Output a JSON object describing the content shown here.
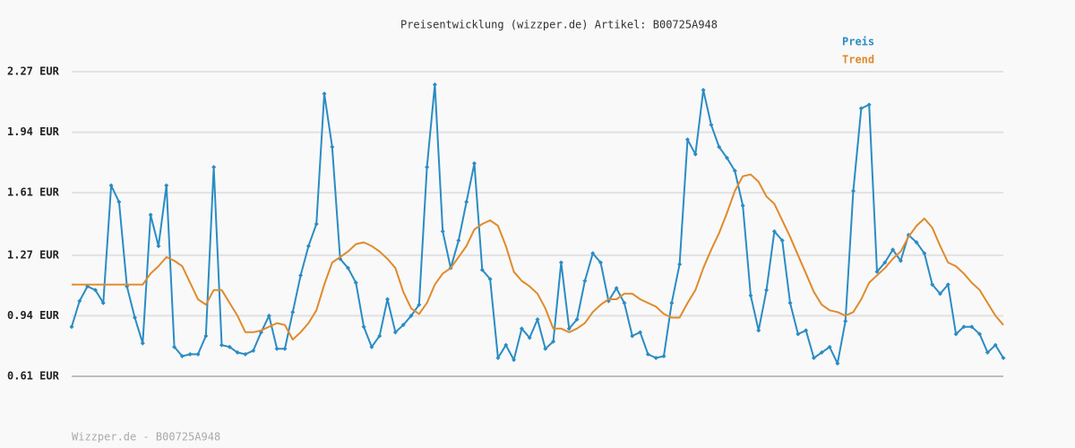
{
  "chart_data": {
    "type": "line",
    "title": "Preisentwicklung (wizzper.de) Artikel: B00725A948",
    "footer": "Wizzper.de - B00725A948",
    "ylim": [
      0.61,
      2.27
    ],
    "yticks": [
      {
        "value": 0.61,
        "label": "0.61 EUR"
      },
      {
        "value": 0.94,
        "label": "0.94 EUR"
      },
      {
        "value": 1.27,
        "label": "1.27 EUR"
      },
      {
        "value": 1.61,
        "label": "1.61 EUR"
      },
      {
        "value": 1.94,
        "label": "1.94 EUR"
      },
      {
        "value": 2.27,
        "label": "2.27 EUR"
      }
    ],
    "grid": true,
    "series": [
      {
        "name": "Preis",
        "color": "#2a8cc4",
        "markers": true,
        "values": [
          0.88,
          1.02,
          1.1,
          1.08,
          1.01,
          1.65,
          1.56,
          1.1,
          0.93,
          0.79,
          1.49,
          1.32,
          1.65,
          0.77,
          0.72,
          0.73,
          0.73,
          0.83,
          1.75,
          0.78,
          0.77,
          0.74,
          0.73,
          0.75,
          0.85,
          0.94,
          0.76,
          0.76,
          0.96,
          1.16,
          1.32,
          1.44,
          2.15,
          1.86,
          1.25,
          1.2,
          1.12,
          0.88,
          0.77,
          0.83,
          1.03,
          0.85,
          0.89,
          0.94,
          1.0,
          1.75,
          2.2,
          1.4,
          1.2,
          1.35,
          1.56,
          1.77,
          1.19,
          1.14,
          0.71,
          0.78,
          0.7,
          0.87,
          0.82,
          0.92,
          0.76,
          0.8,
          1.23,
          0.87,
          0.92,
          1.13,
          1.28,
          1.23,
          1.02,
          1.09,
          1.01,
          0.83,
          0.85,
          0.73,
          0.71,
          0.72,
          1.01,
          1.22,
          1.9,
          1.82,
          2.17,
          1.98,
          1.86,
          1.8,
          1.73,
          1.54,
          1.05,
          0.86,
          1.08,
          1.4,
          1.35,
          1.01,
          0.84,
          0.86,
          0.71,
          0.74,
          0.77,
          0.68,
          0.91,
          1.62,
          2.07,
          2.09,
          1.18,
          1.23,
          1.3,
          1.24,
          1.38,
          1.34,
          1.28,
          1.11,
          1.06,
          1.11,
          0.84,
          0.88,
          0.88,
          0.84,
          0.74,
          0.78,
          0.71
        ]
      },
      {
        "name": "Trend",
        "color": "#e08a2c",
        "markers": false,
        "values": [
          1.11,
          1.11,
          1.11,
          1.11,
          1.11,
          1.11,
          1.11,
          1.11,
          1.11,
          1.11,
          1.17,
          1.21,
          1.26,
          1.24,
          1.21,
          1.12,
          1.03,
          1.0,
          1.08,
          1.08,
          1.01,
          0.94,
          0.85,
          0.85,
          0.86,
          0.88,
          0.9,
          0.89,
          0.81,
          0.85,
          0.9,
          0.97,
          1.11,
          1.23,
          1.26,
          1.29,
          1.33,
          1.34,
          1.32,
          1.29,
          1.25,
          1.2,
          1.07,
          0.98,
          0.95,
          1.01,
          1.11,
          1.17,
          1.2,
          1.26,
          1.32,
          1.41,
          1.44,
          1.46,
          1.43,
          1.32,
          1.18,
          1.13,
          1.1,
          1.06,
          0.98,
          0.87,
          0.87,
          0.85,
          0.87,
          0.9,
          0.96,
          1.0,
          1.03,
          1.03,
          1.06,
          1.06,
          1.03,
          1.01,
          0.99,
          0.95,
          0.93,
          0.93,
          1.01,
          1.08,
          1.2,
          1.3,
          1.39,
          1.5,
          1.62,
          1.7,
          1.71,
          1.67,
          1.59,
          1.55,
          1.46,
          1.37,
          1.27,
          1.17,
          1.07,
          1.0,
          0.97,
          0.96,
          0.94,
          0.96,
          1.03,
          1.12,
          1.16,
          1.2,
          1.25,
          1.29,
          1.37,
          1.43,
          1.47,
          1.42,
          1.32,
          1.23,
          1.21,
          1.17,
          1.12,
          1.08,
          1.01,
          0.94,
          0.89
        ]
      }
    ]
  }
}
